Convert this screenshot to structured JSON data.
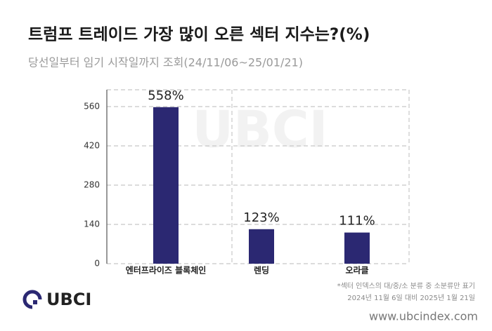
{
  "chart_data": {
    "type": "bar",
    "title": "트럼프 트레이드 가장 많이 오른 섹터 지수는?(%)",
    "subtitle": "당선일부터 임기 시작일까지 조회(24/11/06~25/01/21)",
    "categories": [
      "엔터프라이즈 블록체인",
      "렌딩",
      "오라클"
    ],
    "values": [
      558,
      123,
      111
    ],
    "value_labels": [
      "558%",
      "123%",
      "111%"
    ],
    "color": "#2b2872",
    "ylim": [
      0,
      620
    ],
    "yticks": [
      0,
      140,
      280,
      420,
      560
    ],
    "grid": true
  },
  "footer": {
    "brand": "UBCI",
    "notes": [
      "*섹터 인덱스의 대/중/소 분류 중 소분류만 표기",
      "2024년 11월 6일 대비 2025년 1월 21일"
    ],
    "website": "www.ubcindex.com"
  }
}
